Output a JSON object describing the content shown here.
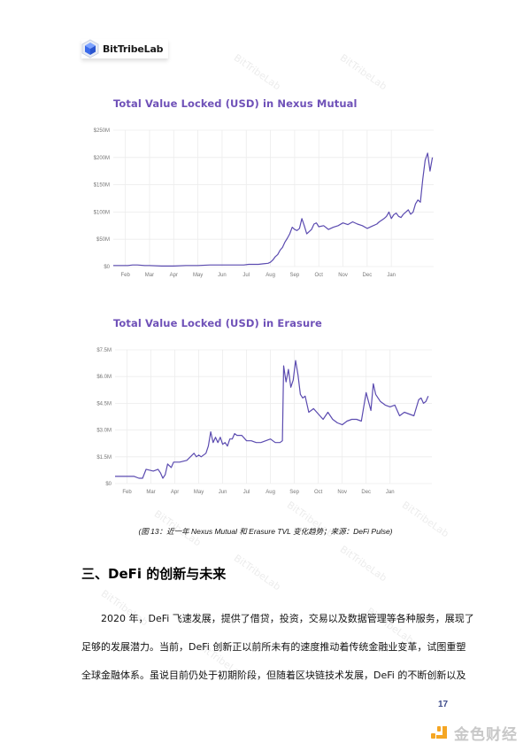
{
  "header": {
    "logo_text": "BitTribeLab"
  },
  "watermark": "BitTribeLab",
  "chart_data": [
    {
      "type": "line",
      "title": "Total Value Locked (USD) in Nexus Mutual",
      "xlabel": "",
      "ylabel": "",
      "ytick_labels": [
        "$0",
        "$50M",
        "$100M",
        "$150M",
        "$200M",
        "$250M"
      ],
      "yticks": [
        0,
        50,
        100,
        150,
        200,
        250
      ],
      "ylim": [
        0,
        250
      ],
      "unit": "USD millions",
      "xtick_labels": [
        "Feb",
        "Mar",
        "Apr",
        "May",
        "Jun",
        "Jul",
        "Aug",
        "Sep",
        "Oct",
        "Nov",
        "Dec",
        "Jan"
      ],
      "grid": true,
      "legend": "none",
      "line_color": "#5b4bb0",
      "x": [
        0,
        0.3,
        0.6,
        0.8,
        1.0,
        1.3,
        1.5,
        2.0,
        2.5,
        3.0,
        3.5,
        4.0,
        4.5,
        5.0,
        5.2,
        5.4,
        5.6,
        5.8,
        6.0,
        6.2,
        6.4,
        6.5,
        6.6,
        6.7,
        6.8,
        6.9,
        7.0,
        7.1,
        7.2,
        7.3,
        7.4,
        7.5,
        7.6,
        7.7,
        7.8,
        7.9,
        8.0,
        8.1,
        8.2,
        8.3,
        8.4,
        8.5,
        8.7,
        8.9,
        9.1,
        9.3,
        9.5,
        9.7,
        9.9,
        10.1,
        10.3,
        10.5,
        10.7,
        10.9,
        11.0,
        11.1,
        11.2,
        11.3,
        11.4,
        11.5,
        11.6,
        11.7,
        11.8,
        11.9,
        12.0,
        12.1,
        12.2,
        12.3,
        12.4,
        12.5,
        12.6,
        12.7,
        12.8,
        12.9,
        13.0,
        13.1,
        13.2
      ],
      "values": [
        2,
        2,
        2,
        3,
        3,
        2,
        2,
        1,
        1,
        2,
        2,
        3,
        3,
        3,
        3,
        3,
        4,
        4,
        4,
        5,
        6,
        8,
        12,
        18,
        22,
        30,
        35,
        45,
        52,
        60,
        72,
        68,
        66,
        70,
        88,
        75,
        60,
        64,
        68,
        78,
        80,
        73,
        75,
        68,
        72,
        75,
        80,
        77,
        82,
        78,
        75,
        70,
        74,
        78,
        82,
        85,
        88,
        92,
        100,
        88,
        95,
        98,
        92,
        90,
        96,
        100,
        104,
        96,
        100,
        115,
        122,
        118,
        160,
        195,
        208,
        175,
        200
      ],
      "xrange_note": "x is months since start of Feb; approximate readings"
    },
    {
      "type": "line",
      "title": "Total Value Locked (USD) in Erasure",
      "xlabel": "",
      "ylabel": "",
      "ytick_labels": [
        "$0",
        "$1.5M",
        "$3.0M",
        "$4.5M",
        "$6.0M",
        "$7.5M"
      ],
      "yticks": [
        0,
        1.5,
        3.0,
        4.5,
        6.0,
        7.5
      ],
      "ylim": [
        0,
        7.5
      ],
      "unit": "USD millions",
      "xtick_labels": [
        "Feb",
        "Mar",
        "Apr",
        "May",
        "Jun",
        "Jul",
        "Aug",
        "Sep",
        "Oct",
        "Nov",
        "Dec",
        "Jan"
      ],
      "grid": true,
      "legend": "none",
      "line_color": "#5b4bb0",
      "x": [
        0,
        0.5,
        0.8,
        1.0,
        1.1,
        1.15,
        1.3,
        1.6,
        1.8,
        1.9,
        2.0,
        2.1,
        2.2,
        2.35,
        2.45,
        2.55,
        2.7,
        3.0,
        3.3,
        3.4,
        3.5,
        3.6,
        3.8,
        3.9,
        4.0,
        4.1,
        4.2,
        4.3,
        4.4,
        4.5,
        4.6,
        4.7,
        4.8,
        4.9,
        5.0,
        5.1,
        5.3,
        5.5,
        5.7,
        5.9,
        6.1,
        6.3,
        6.5,
        6.7,
        6.9,
        7.0,
        7.05,
        7.15,
        7.25,
        7.35,
        7.45,
        7.55,
        7.65,
        7.75,
        7.85,
        7.95,
        8.1,
        8.3,
        8.5,
        8.7,
        8.9,
        9.1,
        9.3,
        9.5,
        9.7,
        9.9,
        10.1,
        10.3,
        10.5,
        10.7,
        10.8,
        10.9,
        11.0,
        11.1,
        11.3,
        11.5,
        11.7,
        11.9,
        12.1,
        12.3,
        12.5,
        12.7,
        12.8,
        12.9,
        13.0,
        13.1
      ],
      "values": [
        0.4,
        0.4,
        0.4,
        0.3,
        0.3,
        0.3,
        0.8,
        0.7,
        0.8,
        0.6,
        0.3,
        0.5,
        1.1,
        0.9,
        1.2,
        1.2,
        1.2,
        1.3,
        1.7,
        1.5,
        1.6,
        1.5,
        1.7,
        2.1,
        2.9,
        2.3,
        2.6,
        2.3,
        2.6,
        2.2,
        2.3,
        2.1,
        2.5,
        2.5,
        2.8,
        2.7,
        2.7,
        2.4,
        2.4,
        2.3,
        2.3,
        2.4,
        2.5,
        2.3,
        2.3,
        2.4,
        6.6,
        5.7,
        6.4,
        5.4,
        5.8,
        6.9,
        6.1,
        5.0,
        4.8,
        4.9,
        4.0,
        4.2,
        3.9,
        3.6,
        4.0,
        3.6,
        3.4,
        3.3,
        3.5,
        3.6,
        3.6,
        3.5,
        5.1,
        4.1,
        5.6,
        5.0,
        4.8,
        4.6,
        4.4,
        4.3,
        4.4,
        3.8,
        4.0,
        3.9,
        3.8,
        4.7,
        4.8,
        4.5,
        4.6,
        4.9
      ],
      "xrange_note": "x is months since start of Feb; approximate readings"
    }
  ],
  "caption": "(图 13：近一年 Nexus Mutual 和 Erasure TVL 变化趋势；来源：DeFi Pulse)",
  "section": {
    "heading": "三、DeFi 的创新与未来",
    "paragraph_lines": [
      "2020 年，DeFi 飞速发展，提供了借贷，投资，交易以及数据管理等各种服务，展现了",
      "足够的发展潜力。当前，DeFi 创新正以前所未有的速度推动着传统金融业变革，试图重塑",
      "全球金融体系。虽说目前仍处于初期阶段，但随着区块链技术发展，DeFi 的不断创新以及"
    ]
  },
  "footer": {
    "page_number": "17",
    "brand_text": "金色财经"
  }
}
